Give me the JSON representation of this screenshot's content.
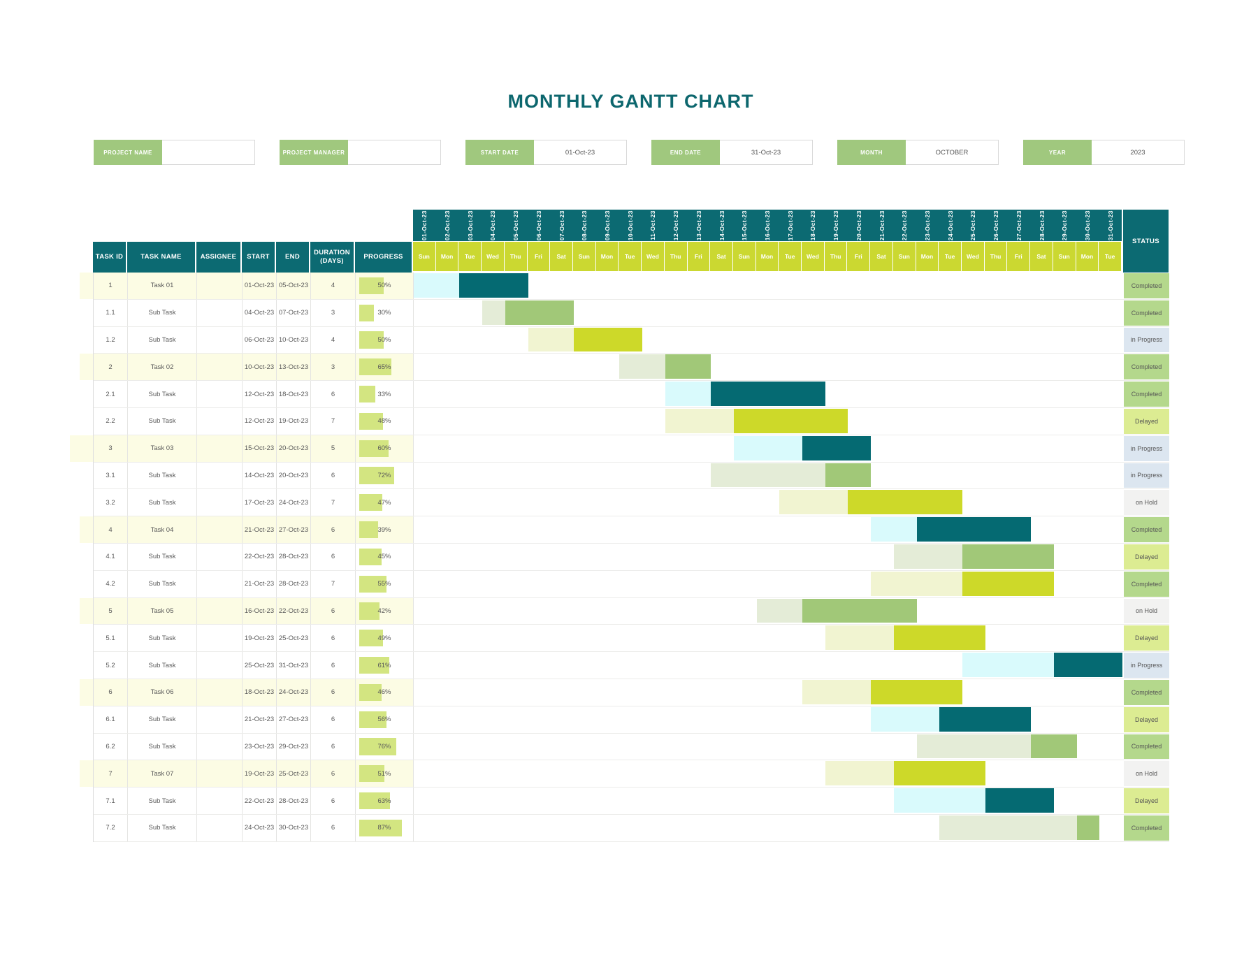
{
  "title": "MONTHLY GANTT CHART",
  "fields": [
    {
      "label": "PROJECT NAME",
      "value": ""
    },
    {
      "label": "PROJECT MANAGER",
      "value": ""
    },
    {
      "label": "START DATE",
      "value": "01-Oct-23"
    },
    {
      "label": "END DATE",
      "value": "31-Oct-23"
    },
    {
      "label": "MONTH",
      "value": "OCTOBER"
    },
    {
      "label": "YEAR",
      "value": "2023"
    }
  ],
  "table": {
    "columns": [
      "TASK ID",
      "TASK NAME",
      "ASSIGNEE",
      "START",
      "END",
      "DURATION (DAYS)",
      "PROGRESS"
    ],
    "status_header": "STATUS"
  },
  "colors": {
    "title_teal": "#0d676e",
    "header_teal": "#0c6a72",
    "day_row_chartreuse": "#cbd831",
    "field_label_green": "#a0c87e",
    "main_row_bg": "#fcfce4",
    "progress_bar": "#d3e581",
    "bar_schemes": {
      "teal": {
        "light": "#d9fafc",
        "dark": "#056a72"
      },
      "green": {
        "light": "#e4ecd7",
        "dark": "#a1c878"
      },
      "chartreuse": {
        "light": "#f1f4d1",
        "dark": "#cdd929"
      }
    },
    "status": {
      "Completed": "#b4d88c",
      "in Progress": "#dce6f0",
      "Delayed": "#dcec92",
      "on Hold": "#f2f2f1"
    }
  },
  "chart_data": {
    "type": "bar",
    "subtype": "gantt",
    "title": "MONTHLY GANTT CHART",
    "month": "OCTOBER",
    "year": "2023",
    "x_axis_dates": true,
    "dates": [
      "01-Oct-23",
      "02-Oct-23",
      "03-Oct-23",
      "04-Oct-23",
      "05-Oct-23",
      "06-Oct-23",
      "07-Oct-23",
      "08-Oct-23",
      "09-Oct-23",
      "10-Oct-23",
      "11-Oct-23",
      "12-Oct-23",
      "13-Oct-23",
      "14-Oct-23",
      "15-Oct-23",
      "16-Oct-23",
      "17-Oct-23",
      "18-Oct-23",
      "19-Oct-23",
      "20-Oct-23",
      "21-Oct-23",
      "22-Oct-23",
      "23-Oct-23",
      "24-Oct-23",
      "25-Oct-23",
      "26-Oct-23",
      "27-Oct-23",
      "28-Oct-23",
      "29-Oct-23",
      "30-Oct-23",
      "31-Oct-23"
    ],
    "days": [
      "Sun",
      "Mon",
      "Tue",
      "Wed",
      "Thu",
      "Fri",
      "Sat",
      "Sun",
      "Mon",
      "Tue",
      "Wed",
      "Thu",
      "Fri",
      "Sat",
      "Sun",
      "Mon",
      "Tue",
      "Wed",
      "Thu",
      "Fri",
      "Sat",
      "Sun",
      "Mon",
      "Tue",
      "Wed",
      "Thu",
      "Fri",
      "Sat",
      "Sun",
      "Mon",
      "Tue"
    ],
    "tasks": [
      {
        "id": "1",
        "name": "Task 01",
        "assignee": "",
        "start": "01-Oct-23",
        "end": "05-Oct-23",
        "duration": "4",
        "progress": {
          "pct": 50,
          "label": "50%"
        },
        "status": "Completed",
        "main": true,
        "bar": {
          "scheme": "teal",
          "light": [
            1,
            2
          ],
          "dark": [
            3,
            5
          ]
        }
      },
      {
        "id": "1.1",
        "name": "Sub Task",
        "assignee": "",
        "start": "04-Oct-23",
        "end": "07-Oct-23",
        "duration": "3",
        "progress": {
          "pct": 30,
          "label": "30%"
        },
        "status": "Completed",
        "main": false,
        "bar": {
          "scheme": "green",
          "light": [
            4,
            4
          ],
          "dark": [
            5,
            7
          ]
        }
      },
      {
        "id": "1.2",
        "name": "Sub Task",
        "assignee": "",
        "start": "06-Oct-23",
        "end": "10-Oct-23",
        "duration": "4",
        "progress": {
          "pct": 50,
          "label": "50%"
        },
        "status": "in Progress",
        "main": false,
        "bar": {
          "scheme": "chartreuse",
          "light": [
            6,
            7
          ],
          "dark": [
            8,
            10
          ]
        }
      },
      {
        "id": "2",
        "name": "Task 02",
        "assignee": "",
        "start": "10-Oct-23",
        "end": "13-Oct-23",
        "duration": "3",
        "progress": {
          "pct": 65,
          "label": "65%"
        },
        "status": "Completed",
        "main": true,
        "bar": {
          "scheme": "green",
          "light": [
            10,
            11
          ],
          "dark": [
            12,
            13
          ]
        }
      },
      {
        "id": "2.1",
        "name": "Sub Task",
        "assignee": "",
        "start": "12-Oct-23",
        "end": "18-Oct-23",
        "duration": "6",
        "progress": {
          "pct": 33,
          "label": "33%"
        },
        "status": "Completed",
        "main": false,
        "bar": {
          "scheme": "teal",
          "light": [
            12,
            13
          ],
          "dark": [
            14,
            18
          ]
        }
      },
      {
        "id": "2.2",
        "name": "Sub Task",
        "assignee": "",
        "start": "12-Oct-23",
        "end": "19-Oct-23",
        "duration": "7",
        "progress": {
          "pct": 48,
          "label": "48%"
        },
        "status": "Delayed",
        "main": false,
        "bar": {
          "scheme": "chartreuse",
          "light": [
            12,
            14
          ],
          "dark": [
            15,
            19
          ]
        }
      },
      {
        "id": "3",
        "name": "Task 03",
        "assignee": "",
        "start": "15-Oct-23",
        "end": "20-Oct-23",
        "duration": "5",
        "progress": {
          "pct": 60,
          "label": "60%"
        },
        "status": "in Progress",
        "main": true,
        "bar": {
          "scheme": "teal",
          "light": [
            15,
            17
          ],
          "dark": [
            18,
            20
          ]
        }
      },
      {
        "id": "3.1",
        "name": "Sub Task",
        "assignee": "",
        "start": "14-Oct-23",
        "end": "20-Oct-23",
        "duration": "6",
        "progress": {
          "pct": 72,
          "label": "72%"
        },
        "status": "in Progress",
        "main": false,
        "bar": {
          "scheme": "green",
          "light": [
            14,
            18
          ],
          "dark": [
            19,
            20
          ]
        }
      },
      {
        "id": "3.2",
        "name": "Sub Task",
        "assignee": "",
        "start": "17-Oct-23",
        "end": "24-Oct-23",
        "duration": "7",
        "progress": {
          "pct": 47,
          "label": "47%"
        },
        "status": "on Hold",
        "main": false,
        "bar": {
          "scheme": "chartreuse",
          "light": [
            17,
            19
          ],
          "dark": [
            20,
            24
          ]
        }
      },
      {
        "id": "4",
        "name": "Task 04",
        "assignee": "",
        "start": "21-Oct-23",
        "end": "27-Oct-23",
        "duration": "6",
        "progress": {
          "pct": 39,
          "label": "39%"
        },
        "status": "Completed",
        "main": true,
        "bar": {
          "scheme": "teal",
          "light": [
            21,
            22
          ],
          "dark": [
            23,
            27
          ]
        }
      },
      {
        "id": "4.1",
        "name": "Sub Task",
        "assignee": "",
        "start": "22-Oct-23",
        "end": "28-Oct-23",
        "duration": "6",
        "progress": {
          "pct": 45,
          "label": "45%"
        },
        "status": "Delayed",
        "main": false,
        "bar": {
          "scheme": "green",
          "light": [
            22,
            24
          ],
          "dark": [
            25,
            28
          ]
        }
      },
      {
        "id": "4.2",
        "name": "Sub Task",
        "assignee": "",
        "start": "21-Oct-23",
        "end": "28-Oct-23",
        "duration": "7",
        "progress": {
          "pct": 55,
          "label": "55%"
        },
        "status": "Completed",
        "main": false,
        "bar": {
          "scheme": "chartreuse",
          "light": [
            21,
            24
          ],
          "dark": [
            25,
            28
          ]
        }
      },
      {
        "id": "5",
        "name": "Task 05",
        "assignee": "",
        "start": "16-Oct-23",
        "end": "22-Oct-23",
        "duration": "6",
        "progress": {
          "pct": 42,
          "label": "42%"
        },
        "status": "on Hold",
        "main": true,
        "bar": {
          "scheme": "green",
          "light": [
            16,
            17
          ],
          "dark": [
            18,
            22
          ]
        }
      },
      {
        "id": "5.1",
        "name": "Sub Task",
        "assignee": "",
        "start": "19-Oct-23",
        "end": "25-Oct-23",
        "duration": "6",
        "progress": {
          "pct": 49,
          "label": "49%"
        },
        "status": "Delayed",
        "main": false,
        "bar": {
          "scheme": "chartreuse",
          "light": [
            19,
            21
          ],
          "dark": [
            22,
            25
          ]
        }
      },
      {
        "id": "5.2",
        "name": "Sub Task",
        "assignee": "",
        "start": "25-Oct-23",
        "end": "31-Oct-23",
        "duration": "6",
        "progress": {
          "pct": 61,
          "label": "61%"
        },
        "status": "in Progress",
        "main": false,
        "bar": {
          "scheme": "teal",
          "light": [
            25,
            28
          ],
          "dark": [
            29,
            31
          ]
        }
      },
      {
        "id": "6",
        "name": "Task 06",
        "assignee": "",
        "start": "18-Oct-23",
        "end": "24-Oct-23",
        "duration": "6",
        "progress": {
          "pct": 46,
          "label": "46%"
        },
        "status": "Completed",
        "main": true,
        "bar": {
          "scheme": "chartreuse",
          "light": [
            18,
            20
          ],
          "dark": [
            21,
            24
          ]
        }
      },
      {
        "id": "6.1",
        "name": "Sub Task",
        "assignee": "",
        "start": "21-Oct-23",
        "end": "27-Oct-23",
        "duration": "6",
        "progress": {
          "pct": 56,
          "label": "56%"
        },
        "status": "Delayed",
        "main": false,
        "bar": {
          "scheme": "teal",
          "light": [
            21,
            23
          ],
          "dark": [
            24,
            27
          ]
        }
      },
      {
        "id": "6.2",
        "name": "Sub Task",
        "assignee": "",
        "start": "23-Oct-23",
        "end": "29-Oct-23",
        "duration": "6",
        "progress": {
          "pct": 76,
          "label": "76%"
        },
        "status": "Completed",
        "main": false,
        "bar": {
          "scheme": "green",
          "light": [
            23,
            27
          ],
          "dark": [
            28,
            29
          ]
        }
      },
      {
        "id": "7",
        "name": "Task 07",
        "assignee": "",
        "start": "19-Oct-23",
        "end": "25-Oct-23",
        "duration": "6",
        "progress": {
          "pct": 51,
          "label": "51%"
        },
        "status": "on Hold",
        "main": true,
        "bar": {
          "scheme": "chartreuse",
          "light": [
            19,
            21
          ],
          "dark": [
            22,
            25
          ]
        }
      },
      {
        "id": "7.1",
        "name": "Sub Task",
        "assignee": "",
        "start": "22-Oct-23",
        "end": "28-Oct-23",
        "duration": "6",
        "progress": {
          "pct": 63,
          "label": "63%"
        },
        "status": "Delayed",
        "main": false,
        "bar": {
          "scheme": "teal",
          "light": [
            22,
            25
          ],
          "dark": [
            26,
            28
          ]
        }
      },
      {
        "id": "7.2",
        "name": "Sub Task",
        "assignee": "",
        "start": "24-Oct-23",
        "end": "30-Oct-23",
        "duration": "6",
        "progress": {
          "pct": 87,
          "label": "87%"
        },
        "status": "Completed",
        "main": false,
        "bar": {
          "scheme": "green",
          "light": [
            24,
            29
          ],
          "dark": [
            30,
            30
          ]
        }
      }
    ]
  }
}
